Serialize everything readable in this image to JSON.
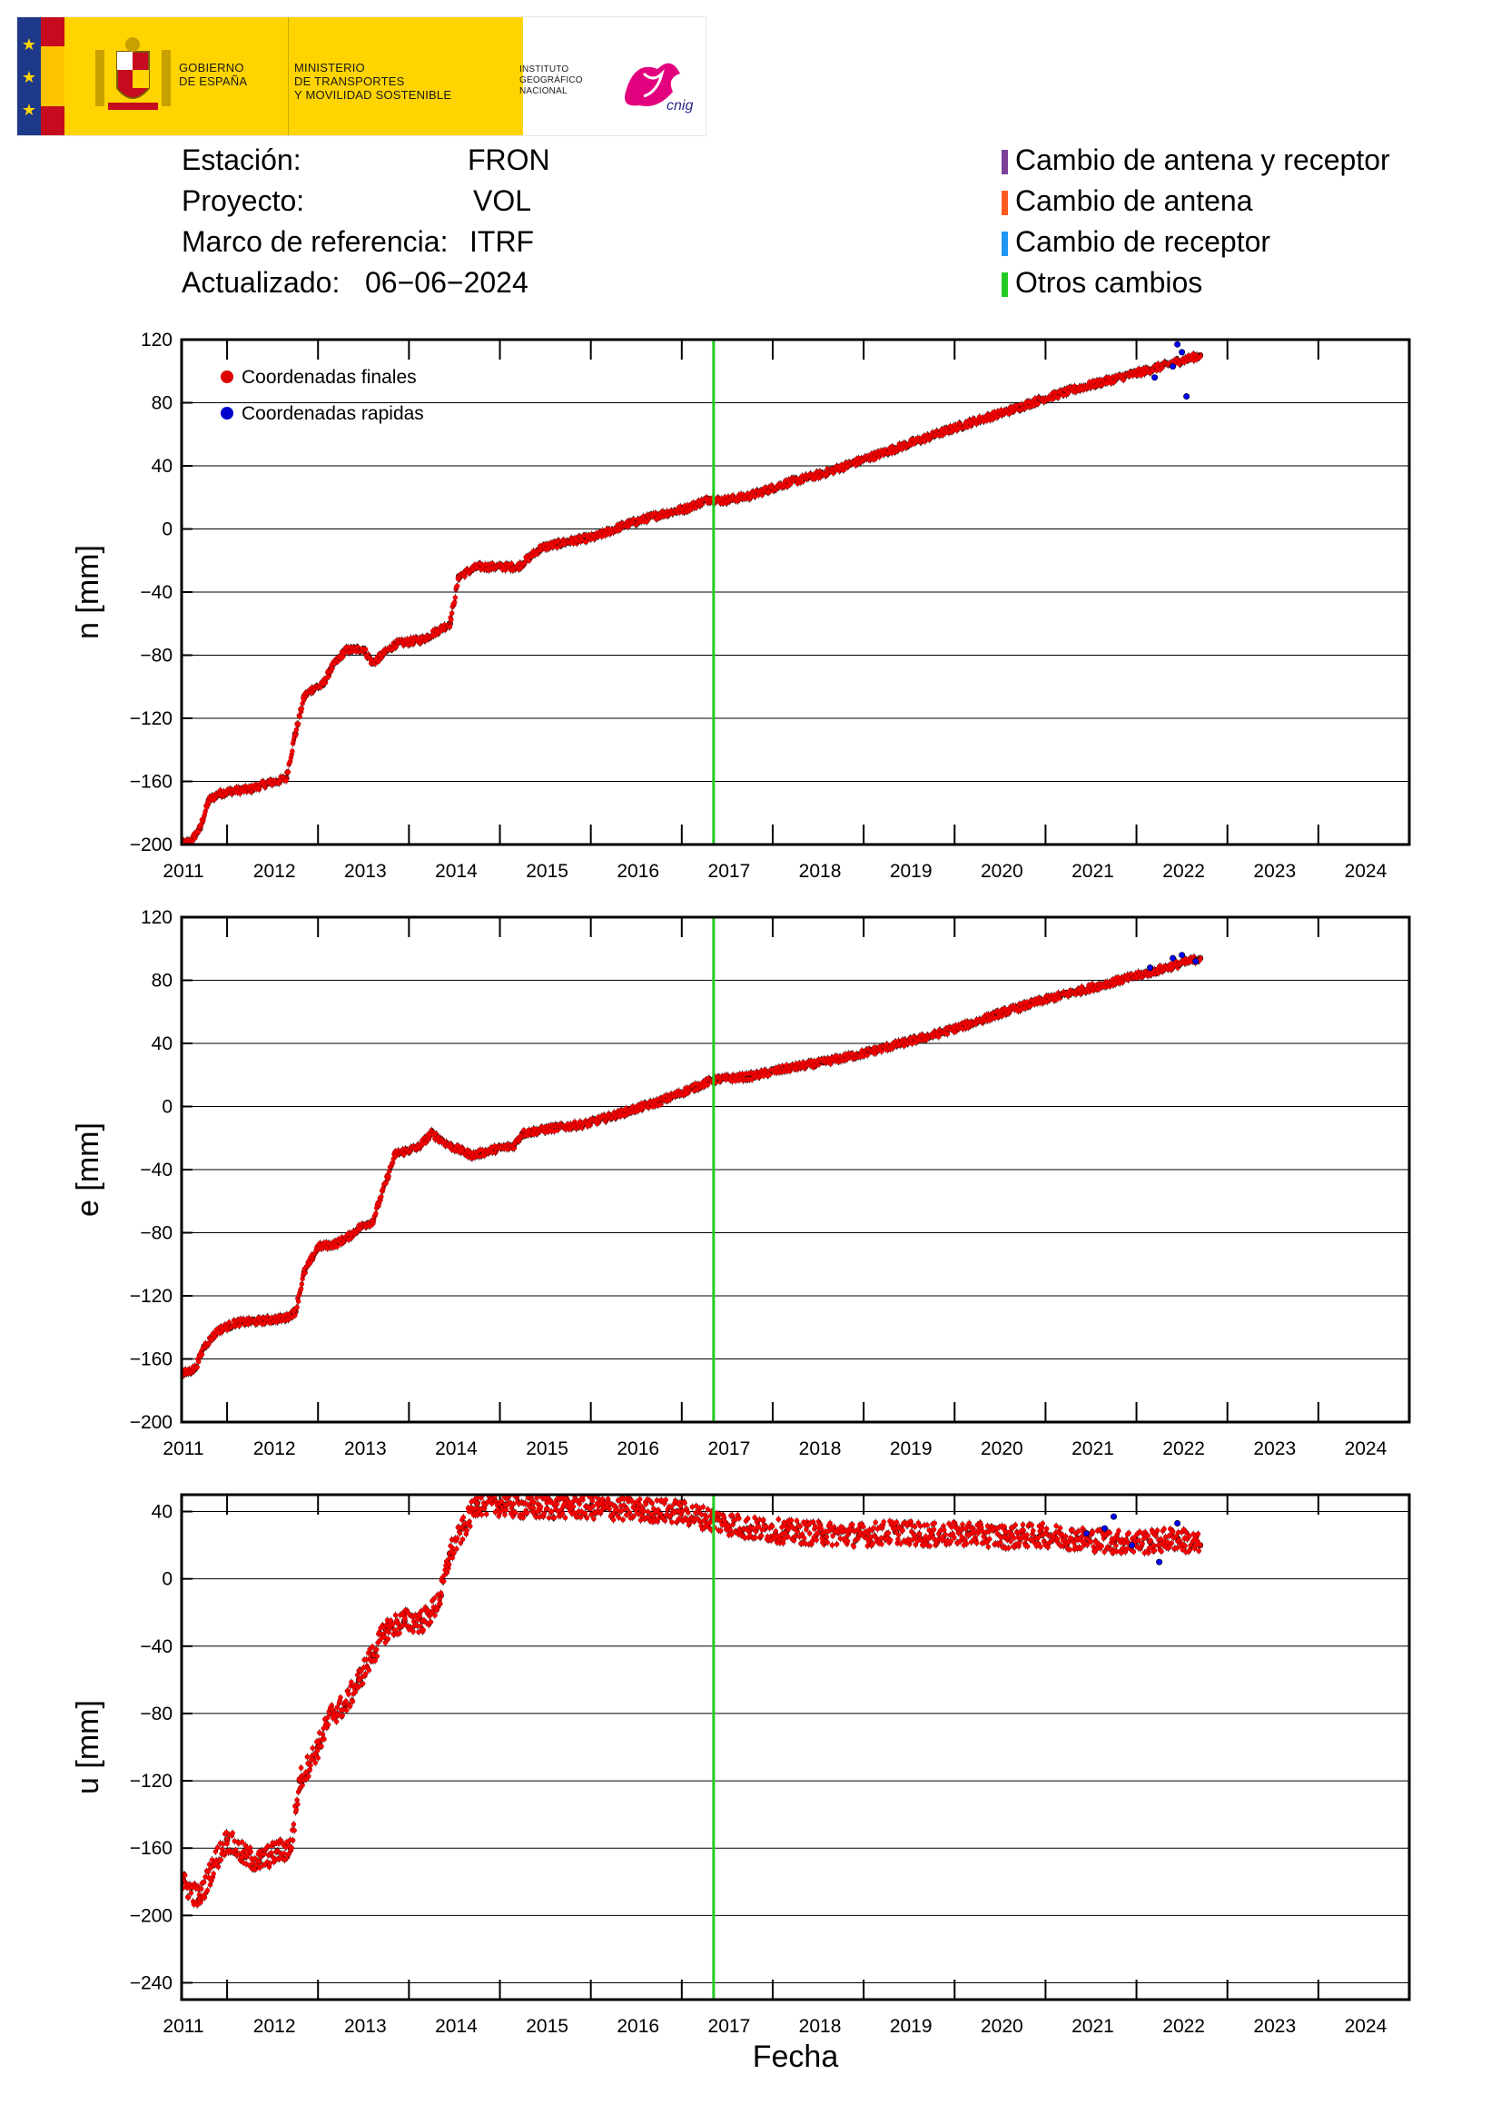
{
  "header": {
    "gov_name_1": "GOBIERNO",
    "gov_name_2": "DE ESPAÑA",
    "ministry_1": "MINISTERIO",
    "ministry_2": "DE TRANSPORTES",
    "ministry_3": "Y MOVILIDAD SOSTENIBLE",
    "ign_1": "INSTITUTO",
    "ign_2": "GEOGRÁFICO",
    "ign_3": "NACIONAL",
    "ign_logo_text": "cnig"
  },
  "info": {
    "station_label": "Estación:",
    "station_value": "FRON",
    "project_label": "Proyecto:",
    "project_value": "VOL",
    "frame_label": "Marco de referencia:",
    "frame_value": "ITRF",
    "updated_label": "Actualizado:",
    "updated_value": "06−06−2024"
  },
  "legend": [
    {
      "label": "Cambio de antena y receptor",
      "color": "#7b3f98"
    },
    {
      "label": "Cambio de antena",
      "color": "#ff5a1f"
    },
    {
      "label": "Cambio de receptor",
      "color": "#2196f3"
    },
    {
      "label": "Otros cambios",
      "color": "#22cc22"
    }
  ],
  "chart_data": [
    {
      "type": "scatter",
      "ylabel": "n [mm]",
      "xlabel": "",
      "xlim": [
        2010.75,
        2024.25
      ],
      "ylim": [
        -200,
        120
      ],
      "yticks": [
        120,
        80,
        40,
        0,
        -40,
        -80,
        -120,
        -160,
        -200
      ],
      "yticklabels": [
        "120",
        "80",
        "40",
        "0",
        "−40",
        "−80",
        "−120",
        "−160",
        "−200"
      ],
      "xticklabels": [
        "2011",
        "2012",
        "2013",
        "2014",
        "2015",
        "2016",
        "2017",
        "2018",
        "2019",
        "2020",
        "2021",
        "2022",
        "2023",
        "2024"
      ],
      "grid": true,
      "legend": {
        "position": "top-left",
        "entries": [
          "Coordenadas finales",
          "Coordenadas rapidas"
        ]
      },
      "event_lines": [
        {
          "x": 2016.6,
          "color": "#22cc22"
        }
      ],
      "series": [
        {
          "name": "Coordenadas finales",
          "color": "#ff0000",
          "x": [
            2010.75,
            2010.85,
            2010.95,
            2011.05,
            2011.15,
            2011.3,
            2011.5,
            2011.7,
            2011.8,
            2011.9,
            2012.0,
            2012.1,
            2012.2,
            2012.3,
            2012.4,
            2012.55,
            2012.75,
            2012.85,
            2013.1,
            2013.4,
            2013.55,
            2013.7,
            2013.8,
            2014.0,
            2014.2,
            2014.45,
            2014.7,
            2015.0,
            2015.3,
            2015.6,
            2016.0,
            2016.3,
            2016.55,
            2016.7,
            2017.0,
            2017.4,
            2017.8,
            2018.2,
            2018.6,
            2019.0,
            2019.4,
            2019.8,
            2020.2,
            2020.6,
            2021.0,
            2021.4,
            2021.7,
            2021.95
          ],
          "y": [
            -200,
            -198,
            -190,
            -172,
            -168,
            -166,
            -165,
            -161,
            -160,
            -158,
            -130,
            -106,
            -101,
            -99,
            -88,
            -77,
            -76,
            -85,
            -73,
            -70,
            -65,
            -60,
            -30,
            -24,
            -24,
            -24,
            -12,
            -8,
            -5,
            2,
            9,
            13,
            19,
            18,
            21,
            29,
            35,
            43,
            51,
            59,
            67,
            74,
            82,
            89,
            95,
            101,
            106,
            110
          ]
        },
        {
          "name": "Coordenadas rapidas",
          "color": "#0000ff",
          "x": [
            2021.45,
            2021.65,
            2021.7,
            2021.75,
            2021.8
          ],
          "y": [
            96,
            103,
            117,
            112,
            84
          ]
        }
      ]
    },
    {
      "type": "scatter",
      "ylabel": "e [mm]",
      "xlabel": "",
      "xlim": [
        2010.75,
        2024.25
      ],
      "ylim": [
        -200,
        120
      ],
      "yticks": [
        120,
        80,
        40,
        0,
        -40,
        -80,
        -120,
        -160,
        -200
      ],
      "yticklabels": [
        "120",
        "80",
        "40",
        "0",
        "−40",
        "−80",
        "−120",
        "−160",
        "−200"
      ],
      "xticklabels": [
        "2011",
        "2012",
        "2013",
        "2014",
        "2015",
        "2016",
        "2017",
        "2018",
        "2019",
        "2020",
        "2021",
        "2022",
        "2023",
        "2024"
      ],
      "grid": true,
      "event_lines": [
        {
          "x": 2016.6,
          "color": "#22cc22"
        }
      ],
      "series": [
        {
          "name": "Coordenadas finales",
          "color": "#ff0000",
          "x": [
            2010.75,
            2010.9,
            2011.0,
            2011.15,
            2011.35,
            2011.6,
            2011.9,
            2012.0,
            2012.1,
            2012.25,
            2012.45,
            2012.6,
            2012.7,
            2012.8,
            2012.85,
            2013.1,
            2013.35,
            2013.5,
            2013.7,
            2013.95,
            2014.2,
            2014.4,
            2014.5,
            2014.8,
            2015.2,
            2015.6,
            2016.0,
            2016.3,
            2016.6,
            2017.0,
            2017.4,
            2017.8,
            2018.2,
            2018.6,
            2019.0,
            2019.4,
            2019.8,
            2020.2,
            2020.6,
            2021.0,
            2021.4,
            2021.7,
            2021.95
          ],
          "y": [
            -170,
            -166,
            -152,
            -142,
            -137,
            -136,
            -134,
            -130,
            -105,
            -89,
            -87,
            -82,
            -77,
            -74,
            -73,
            -30,
            -26,
            -17,
            -25,
            -31,
            -27,
            -25,
            -17,
            -14,
            -11,
            -4,
            3,
            10,
            17,
            19,
            24,
            28,
            33,
            39,
            45,
            52,
            60,
            67,
            73,
            79,
            85,
            90,
            94
          ]
        },
        {
          "name": "Coordenadas rapidas",
          "color": "#0000ff",
          "x": [
            2021.4,
            2021.65,
            2021.75,
            2021.9
          ],
          "y": [
            88,
            94,
            96,
            92
          ]
        }
      ]
    },
    {
      "type": "scatter",
      "ylabel": "u [mm]",
      "xlabel": "Fecha",
      "xlim": [
        2010.75,
        2024.25
      ],
      "ylim": [
        -250,
        50
      ],
      "yticks": [
        40,
        0,
        -40,
        -80,
        -120,
        -160,
        -200,
        -240
      ],
      "yticklabels": [
        "40",
        "0",
        "−40",
        "−80",
        "−120",
        "−160",
        "−200",
        "−240"
      ],
      "xticklabels": [
        "2011",
        "2012",
        "2013",
        "2014",
        "2015",
        "2016",
        "2017",
        "2018",
        "2019",
        "2020",
        "2021",
        "2022",
        "2023",
        "2024"
      ],
      "grid": true,
      "event_lines": [
        {
          "x": 2016.6,
          "color": "#22cc22"
        }
      ],
      "series": [
        {
          "name": "Coordenadas finales",
          "color": "#ff0000",
          "x": [
            2010.75,
            2010.95,
            2011.1,
            2011.25,
            2011.45,
            2011.6,
            2011.8,
            2011.95,
            2012.05,
            2012.25,
            2012.4,
            2012.55,
            2012.7,
            2012.85,
            2013.0,
            2013.2,
            2013.4,
            2013.5,
            2013.6,
            2013.7,
            2013.85,
            2014.0,
            2014.3,
            2014.6,
            2015.0,
            2015.4,
            2015.8,
            2016.2,
            2016.6,
            2017.0,
            2017.4,
            2017.8,
            2018.2,
            2018.6,
            2019.0,
            2019.4,
            2019.8,
            2020.2,
            2020.6,
            2021.0,
            2021.4,
            2021.7,
            2021.95
          ],
          "y": [
            -180,
            -190,
            -170,
            -155,
            -165,
            -168,
            -162,
            -160,
            -120,
            -100,
            -80,
            -75,
            -60,
            -45,
            -30,
            -25,
            -25,
            -20,
            -10,
            15,
            30,
            45,
            44,
            42,
            43,
            42,
            41,
            40,
            35,
            30,
            28,
            27,
            26,
            28,
            26,
            27,
            25,
            26,
            24,
            22,
            22,
            24,
            20
          ]
        },
        {
          "name": "Coordenadas rapidas",
          "color": "#0000ff",
          "x": [
            2020.7,
            2020.9,
            2021.0,
            2021.2,
            2021.5,
            2021.7
          ],
          "y": [
            27,
            30,
            37,
            20,
            10,
            33
          ]
        }
      ]
    }
  ]
}
